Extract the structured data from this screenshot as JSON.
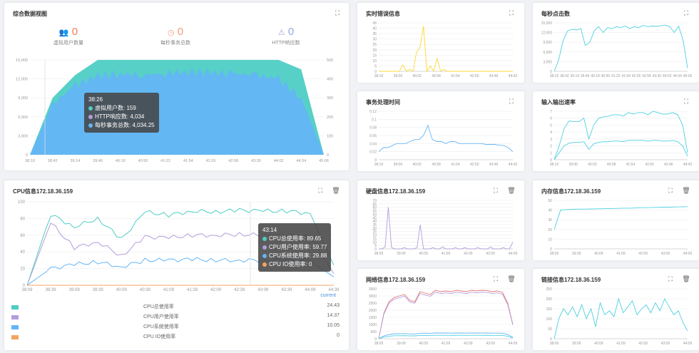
{
  "colors": {
    "teal": "#4ecdc4",
    "blue": "#64b5f6",
    "lilac": "#b39ddb",
    "yellow": "#fdd835",
    "orange": "#f4a460",
    "cyan": "#4dd0e1",
    "grid": "#eeeeee",
    "axis": "#999999"
  },
  "overview": {
    "title": "综合数据视图",
    "stats": [
      {
        "value": "0",
        "label": "虚拟用户数量",
        "icon": "users-icon",
        "color": "#ef7d5b"
      },
      {
        "value": "0",
        "label": "每秒事务总数",
        "icon": "clock-icon",
        "color": "#ef9a7a"
      },
      {
        "value": "0",
        "label": "HTTP响应数",
        "icon": "warning-icon",
        "color": "#9aa6d8"
      }
    ],
    "tooltip": {
      "time": "38:26",
      "rows": [
        {
          "label": "虚拟用户数",
          "value": "159",
          "color": "#4ecdc4"
        },
        {
          "label": "HTTP响应数",
          "value": "4,034",
          "color": "#b39ddb"
        },
        {
          "label": "每秒事务总数",
          "value": "4,034.25",
          "color": "#64b5f6"
        }
      ]
    },
    "chart_data": {
      "type": "area",
      "x": [
        "38:10",
        "38:42",
        "39:14",
        "39:46",
        "40:18",
        "40:50",
        "41:22",
        "41:54",
        "42:26",
        "42:58",
        "43:30",
        "44:02",
        "44:34",
        "45:06"
      ],
      "y_left_ticks": [
        "0",
        "3,000",
        "6,000",
        "9,000",
        "12,000",
        "15,000"
      ],
      "y_right_ticks": [
        "0",
        "100",
        "200",
        "300",
        "400",
        "500"
      ],
      "ylim_left": [
        0,
        15000
      ],
      "ylim_right": [
        0,
        500
      ],
      "series": [
        {
          "name": "虚拟用户数",
          "axis": "right",
          "values": [
            0,
            300,
            420,
            500,
            500,
            500,
            500,
            500,
            500,
            500,
            500,
            500,
            450,
            0
          ]
        },
        {
          "name": "每秒事务总数",
          "axis": "left",
          "values": [
            0,
            8000,
            11000,
            12500,
            12800,
            12600,
            12900,
            13100,
            13000,
            12800,
            12600,
            12000,
            9000,
            0
          ]
        }
      ]
    }
  },
  "cpu": {
    "title": "CPU信息172.18.36.159",
    "tooltip": {
      "time": "43:14",
      "rows": [
        {
          "label": "CPU总使用率",
          "value": "89.65",
          "color": "#4ecdc4"
        },
        {
          "label": "CPU用户使用率",
          "value": "59.77",
          "color": "#b39ddb"
        },
        {
          "label": "CPU系统使用率",
          "value": "29.88",
          "color": "#64b5f6"
        },
        {
          "label": "CPU IO使用率",
          "value": "0",
          "color": "#f4a460"
        }
      ]
    },
    "current_label": "current",
    "legend": [
      {
        "label": "CPU总使用率",
        "value": "24.43",
        "color": "#4ecdc4"
      },
      {
        "label": "CPU用户使用率",
        "value": "14.37",
        "color": "#b39ddb"
      },
      {
        "label": "CPU系统使用率",
        "value": "10.05",
        "color": "#64b5f6"
      },
      {
        "label": "CPU IO使用率",
        "value": "0",
        "color": "#f4a460"
      }
    ],
    "chart_data": {
      "type": "line",
      "x": [
        "38:09",
        "38:39",
        "39:09",
        "39:39",
        "40:09",
        "40:39",
        "41:09",
        "41:39",
        "42:09",
        "42:39",
        "43:09",
        "43:39",
        "44:09",
        "44:39"
      ],
      "y_ticks": [
        "0",
        "20",
        "40",
        "60",
        "80",
        "100"
      ],
      "ylim": [
        0,
        100
      ],
      "series": [
        {
          "name": "CPU总使用率",
          "values": [
            0,
            85,
            70,
            80,
            55,
            88,
            84,
            89,
            88,
            90,
            89,
            89,
            86,
            24
          ]
        },
        {
          "name": "CPU用户使用率",
          "values": [
            0,
            75,
            45,
            52,
            35,
            58,
            57,
            60,
            60,
            61,
            60,
            60,
            58,
            14
          ]
        },
        {
          "name": "CPU系统使用率",
          "values": [
            0,
            20,
            25,
            28,
            22,
            30,
            30,
            31,
            30,
            30,
            30,
            30,
            29,
            10
          ]
        },
        {
          "name": "CPU IO使用率",
          "values": [
            0,
            0,
            0,
            0,
            0,
            0,
            0,
            0,
            0,
            0,
            0,
            0,
            0,
            0
          ]
        }
      ]
    }
  },
  "small": [
    {
      "id": "errors",
      "title": "实时错误信息",
      "color": "#fdd835",
      "trash": false,
      "x_ticks": [
        "38:10",
        "39:06",
        "40:02",
        "40:58",
        "41:54",
        "42:50",
        "43:46",
        "44:42"
      ],
      "y_ticks": [
        "0",
        "5",
        "10",
        "15",
        "20",
        "25",
        "30",
        "35",
        "40",
        "45"
      ],
      "ylim": [
        0,
        45
      ],
      "values": [
        0,
        0,
        0,
        0,
        0,
        0,
        0,
        6,
        0,
        2,
        0,
        18,
        22,
        42,
        0,
        5,
        0,
        12,
        0,
        2,
        0,
        0,
        0,
        0,
        0,
        0,
        0,
        0,
        0,
        0,
        0,
        0,
        0,
        0,
        0,
        0,
        0,
        0,
        0,
        0
      ]
    },
    {
      "id": "clicks",
      "title": "每秒点击数",
      "color": "#4dd0e1",
      "trash": false,
      "x_ticks": [
        "38:10",
        "38:42",
        "39:14",
        "39:46",
        "40:18",
        "40:50",
        "41:22",
        "41:54",
        "42:26",
        "42:58",
        "43:30",
        "44:02",
        "44:34",
        "45:06"
      ],
      "y_ticks": [
        "0",
        "3,000",
        "6,000",
        "9,000",
        "12,000",
        "15,000"
      ],
      "ylim": [
        0,
        15000
      ],
      "values": [
        0,
        3500,
        9500,
        12500,
        13000,
        12800,
        13200,
        8000,
        9000,
        12500,
        13800,
        12000,
        13500,
        13200,
        13800,
        13500,
        14000,
        13200,
        13800,
        13500,
        14200,
        13800,
        14000,
        13900,
        14100,
        14300,
        13800,
        12000,
        14000,
        9500,
        1000
      ]
    },
    {
      "id": "tx-time",
      "title": "事务处理时间",
      "color": "#64b5f6",
      "trash": false,
      "x_ticks": [
        "38:10",
        "39:06",
        "40:02",
        "40:58",
        "41:54",
        "42:50",
        "43:46",
        "44:42"
      ],
      "y_ticks": [
        "0",
        "0.02",
        "0.04",
        "0.06",
        "0.08",
        "0.1",
        "0.12"
      ],
      "ylim": [
        0,
        0.12
      ],
      "values": [
        0.02,
        0.03,
        0.03,
        0.035,
        0.04,
        0.04,
        0.04,
        0.045,
        0.05,
        0.05,
        0.06,
        0.085,
        0.05,
        0.045,
        0.045,
        0.04,
        0.045,
        0.045,
        0.04,
        0.04,
        0.04,
        0.04,
        0.04,
        0.04,
        0.038,
        0.038,
        0.038,
        0.036,
        0.035,
        0.03,
        0.02
      ]
    },
    {
      "id": "io",
      "title": "输入输出速率",
      "color": "#4dd0e1",
      "trash": false,
      "x_ticks": [
        "38:10",
        "39:06",
        "40:02",
        "40:58",
        "41:54",
        "42:50",
        "43:46",
        "44:42"
      ],
      "y_ticks": [
        "0",
        "1",
        "2",
        "3",
        "4",
        "5",
        "6",
        "7"
      ],
      "ylim": [
        0,
        7
      ],
      "series_values": [
        [
          0,
          2,
          4.5,
          5.6,
          5.5,
          5.5,
          6,
          3,
          5,
          6,
          6.2,
          6.3,
          6.5,
          6.5,
          6.3,
          6.8,
          6.6,
          6.8,
          6.8,
          6.5,
          7,
          6.8,
          6.6,
          6.6,
          6.8,
          6.5,
          5,
          1
        ],
        [
          0,
          1,
          2,
          2.4,
          2.5,
          2.5,
          2.6,
          1.5,
          2.3,
          2.5,
          2.6,
          2.6,
          2.7,
          2.7,
          2.6,
          2.8,
          2.8,
          2.8,
          2.8,
          2.7,
          2.8,
          2.8,
          2.7,
          2.7,
          2.8,
          2.6,
          2,
          0.5
        ]
      ]
    },
    {
      "id": "disk",
      "title": "硬盘信息172.18.36.159",
      "color": "#b39ddb",
      "trash": true,
      "x_ticks": [
        "38:09",
        "39:09",
        "40:09",
        "41:09",
        "42:09",
        "43:09",
        "44:09"
      ],
      "y_ticks": [
        "0",
        "5",
        "10",
        "15",
        "20",
        "25",
        "30",
        "35",
        "40",
        "45",
        "50",
        "55",
        "60",
        "65",
        "70"
      ],
      "ylim": [
        0,
        70
      ],
      "values": [
        0,
        0,
        3,
        60,
        2,
        0,
        0,
        0,
        2,
        0,
        0,
        0,
        2,
        35,
        0,
        0,
        0,
        2,
        0,
        0,
        3,
        0,
        0,
        0,
        2,
        0,
        0,
        2,
        0,
        0,
        0,
        2,
        0,
        0,
        0,
        3,
        0,
        0,
        0,
        2,
        0,
        0,
        10
      ]
    },
    {
      "id": "memory",
      "title": "内存信息172.18.36.159",
      "color": "#4dd0e1",
      "trash": true,
      "x_ticks": [
        "38:09",
        "39:09",
        "40:09",
        "41:09",
        "42:09",
        "43:09",
        "44:09"
      ],
      "y_ticks": [
        "0",
        "10",
        "20",
        "30",
        "40",
        "50"
      ],
      "ylim": [
        0,
        50
      ],
      "values": [
        20,
        40,
        40.5,
        40.8,
        41,
        41,
        41.2,
        41.3,
        41.5,
        41.6,
        41.8,
        42,
        42,
        42.2,
        42.5,
        42.6,
        42.8,
        43,
        43,
        43.2,
        43.3,
        43.5
      ]
    },
    {
      "id": "network",
      "title": "网络信息172.18.36.159",
      "color": "#e57373",
      "trash": true,
      "x_ticks": [
        "38:09",
        "39:09",
        "40:09",
        "41:09",
        "42:09",
        "43:09",
        "44:09"
      ],
      "y_ticks": [
        "0",
        "500",
        "1000",
        "1500",
        "2000",
        "2500",
        "3000",
        "3500"
      ],
      "ylim": [
        0,
        3500
      ],
      "series_values": [
        [
          0,
          1800,
          2600,
          2900,
          3000,
          3100,
          2700,
          2600,
          3300,
          3200,
          3100,
          3400,
          3300,
          3350,
          3300,
          3400,
          3350,
          3300,
          3400,
          3350,
          3400,
          3380,
          3300,
          3350,
          3250,
          2500,
          1000
        ],
        [
          0,
          200,
          300,
          350,
          350,
          360,
          340,
          330,
          380,
          390,
          380,
          400,
          400,
          400,
          390,
          400,
          400,
          390,
          400,
          400,
          395,
          400,
          390,
          390,
          385,
          300,
          100
        ]
      ]
    },
    {
      "id": "links",
      "title": "链接信息172.18.36.159",
      "color": "#4dd0e1",
      "trash": true,
      "x_ticks": [
        "38:09",
        "39:09",
        "40:09",
        "41:09",
        "42:09",
        "43:09",
        "44:09"
      ],
      "y_ticks": [
        "0",
        "50",
        "100",
        "150",
        "200",
        "250"
      ],
      "ylim": [
        0,
        250
      ],
      "values": [
        0,
        100,
        150,
        120,
        160,
        110,
        170,
        100,
        150,
        60,
        180,
        120,
        140,
        110,
        200,
        130,
        160,
        190,
        120,
        150,
        170,
        130,
        180,
        140,
        200,
        160,
        120,
        140,
        80,
        40
      ]
    }
  ]
}
